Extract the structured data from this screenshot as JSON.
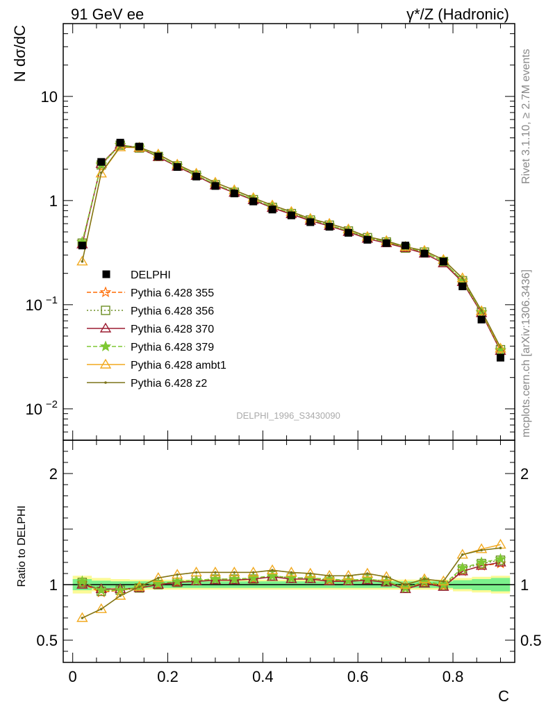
{
  "header": {
    "left": "91 GeV ee",
    "right": "γ*/Z (Hadronic)"
  },
  "side_labels": {
    "rivet": "Rivet 3.1.10, ≥ 2.7M events",
    "mcplots": "mcplots.cern.ch [arXiv:1306.3436]"
  },
  "watermark": "DELPHI_1996_S3430090",
  "colors": {
    "data": "#000000",
    "p355": "#ff6a00",
    "p356": "#6b8e23",
    "p370": "#9b1b30",
    "p379": "#7ec832",
    "ambt1": "#f2a91e",
    "z2": "#7b7318",
    "band_inner": "#7cf08c",
    "band_outer": "#fbfa96"
  },
  "chart_data": [
    {
      "type": "scatter",
      "ylabel": "N dσ/dC",
      "yscale": "log",
      "ylim": [
        0.005,
        50
      ],
      "xlim": [
        -0.02,
        0.93
      ],
      "yticks": [
        {
          "v": 10,
          "label": "10"
        },
        {
          "v": 1,
          "label": "1"
        },
        {
          "v": 0.1,
          "label": "10",
          "exp": "−1"
        },
        {
          "v": 0.01,
          "label": "10",
          "exp": "−2"
        }
      ],
      "x": [
        0.02,
        0.06,
        0.1,
        0.14,
        0.18,
        0.22,
        0.26,
        0.3,
        0.34,
        0.38,
        0.42,
        0.46,
        0.5,
        0.54,
        0.58,
        0.62,
        0.66,
        0.7,
        0.74,
        0.78,
        0.82,
        0.86,
        0.9
      ],
      "data": {
        "name": "DELPHI",
        "values": [
          0.37,
          2.35,
          3.6,
          3.3,
          2.65,
          2.1,
          1.7,
          1.38,
          1.17,
          0.98,
          0.82,
          0.72,
          0.62,
          0.56,
          0.49,
          0.42,
          0.39,
          0.37,
          0.31,
          0.26,
          0.15,
          0.072,
          0.031
        ]
      },
      "series": [
        {
          "name": "Pythia 6.428 355",
          "key": "p355",
          "marker": "star-open",
          "dash": "6,3",
          "values": [
            0.4,
            2.2,
            3.4,
            3.2,
            2.65,
            2.15,
            1.75,
            1.42,
            1.2,
            1.02,
            0.86,
            0.75,
            0.65,
            0.58,
            0.51,
            0.44,
            0.4,
            0.35,
            0.32,
            0.26,
            0.17,
            0.084,
            0.036
          ]
        },
        {
          "name": "Pythia 6.428 356",
          "key": "p356",
          "marker": "square-open",
          "dash": "2,3",
          "values": [
            0.39,
            2.2,
            3.4,
            3.2,
            2.65,
            2.15,
            1.75,
            1.42,
            1.2,
            1.02,
            0.86,
            0.75,
            0.65,
            0.58,
            0.51,
            0.44,
            0.4,
            0.35,
            0.32,
            0.26,
            0.17,
            0.085,
            0.037
          ]
        },
        {
          "name": "Pythia 6.428 370",
          "key": "p370",
          "marker": "triangle-open",
          "dash": "",
          "values": [
            0.38,
            2.25,
            3.45,
            3.2,
            2.62,
            2.12,
            1.73,
            1.4,
            1.19,
            1.01,
            0.85,
            0.74,
            0.64,
            0.57,
            0.5,
            0.43,
            0.39,
            0.35,
            0.31,
            0.25,
            0.165,
            0.083,
            0.036
          ]
        },
        {
          "name": "Pythia 6.428 379",
          "key": "p379",
          "marker": "star-filled",
          "dash": "6,3",
          "values": [
            0.4,
            2.22,
            3.42,
            3.22,
            2.66,
            2.16,
            1.76,
            1.43,
            1.21,
            1.03,
            0.87,
            0.76,
            0.66,
            0.58,
            0.51,
            0.44,
            0.4,
            0.36,
            0.32,
            0.26,
            0.17,
            0.085,
            0.037
          ]
        },
        {
          "name": "Pythia 6.428 ambt1",
          "key": "ambt1",
          "marker": "triangle-open",
          "dash": "",
          "values": [
            0.26,
            1.82,
            3.25,
            3.22,
            2.78,
            2.22,
            1.82,
            1.49,
            1.26,
            1.06,
            0.9,
            0.78,
            0.67,
            0.6,
            0.53,
            0.45,
            0.41,
            0.36,
            0.33,
            0.27,
            0.18,
            0.087,
            0.038
          ]
        },
        {
          "name": "Pythia 6.428 z2",
          "key": "z2",
          "marker": "dot",
          "dash": "",
          "values": [
            0.26,
            1.85,
            3.3,
            3.25,
            2.78,
            2.22,
            1.82,
            1.49,
            1.26,
            1.06,
            0.9,
            0.78,
            0.67,
            0.6,
            0.53,
            0.45,
            0.41,
            0.36,
            0.33,
            0.27,
            0.18,
            0.088,
            0.039
          ]
        }
      ]
    },
    {
      "type": "line",
      "ylabel": "Ratio to DELPHI",
      "xlabel": "C",
      "ylim": [
        0.3,
        2.3
      ],
      "xlim": [
        -0.02,
        0.93
      ],
      "yticks": [
        {
          "v": 2,
          "label": "2"
        },
        {
          "v": 1,
          "label": "1"
        },
        {
          "v": 0.5,
          "label": "0.5"
        }
      ],
      "xticks": [
        {
          "v": 0,
          "label": "0"
        },
        {
          "v": 0.2,
          "label": "0.2"
        },
        {
          "v": 0.4,
          "label": "0.4"
        },
        {
          "v": 0.6,
          "label": "0.6"
        },
        {
          "v": 0.8,
          "label": "0.8"
        }
      ],
      "x": [
        0.02,
        0.06,
        0.1,
        0.14,
        0.18,
        0.22,
        0.26,
        0.3,
        0.34,
        0.38,
        0.42,
        0.46,
        0.5,
        0.54,
        0.58,
        0.62,
        0.66,
        0.7,
        0.74,
        0.78,
        0.82,
        0.86,
        0.9
      ],
      "band_inner": [
        0.05,
        0.035,
        0.03,
        0.03,
        0.03,
        0.03,
        0.03,
        0.03,
        0.03,
        0.03,
        0.03,
        0.03,
        0.03,
        0.03,
        0.03,
        0.03,
        0.03,
        0.03,
        0.03,
        0.03,
        0.04,
        0.05,
        0.06
      ],
      "band_outer": [
        0.08,
        0.06,
        0.05,
        0.045,
        0.045,
        0.045,
        0.045,
        0.045,
        0.045,
        0.045,
        0.045,
        0.045,
        0.045,
        0.045,
        0.045,
        0.045,
        0.045,
        0.045,
        0.045,
        0.045,
        0.06,
        0.07,
        0.08
      ],
      "series": [
        {
          "key": "p355",
          "marker": "star-open",
          "dash": "6,3",
          "values": [
            1.01,
            0.93,
            0.95,
            0.97,
            1.0,
            1.02,
            1.04,
            1.05,
            1.05,
            1.05,
            1.08,
            1.06,
            1.06,
            1.04,
            1.04,
            1.05,
            1.03,
            0.97,
            1.02,
            0.99,
            1.12,
            1.17,
            1.19
          ]
        },
        {
          "key": "p356",
          "marker": "square-open",
          "dash": "2,3",
          "values": [
            1.02,
            0.94,
            0.95,
            0.97,
            1.0,
            1.02,
            1.04,
            1.05,
            1.05,
            1.05,
            1.08,
            1.06,
            1.06,
            1.04,
            1.04,
            1.05,
            1.03,
            0.97,
            1.02,
            0.99,
            1.14,
            1.19,
            1.22
          ]
        },
        {
          "key": "p370",
          "marker": "triangle-open",
          "dash": "",
          "values": [
            1.0,
            0.96,
            0.96,
            0.97,
            1.0,
            1.02,
            1.03,
            1.04,
            1.04,
            1.05,
            1.07,
            1.05,
            1.05,
            1.03,
            1.03,
            1.04,
            1.02,
            0.96,
            1.01,
            0.98,
            1.12,
            1.17,
            1.2
          ]
        },
        {
          "key": "p379",
          "marker": "star-filled",
          "dash": "6,3",
          "values": [
            1.03,
            0.95,
            0.95,
            0.98,
            1.01,
            1.03,
            1.04,
            1.05,
            1.05,
            1.06,
            1.08,
            1.06,
            1.06,
            1.05,
            1.04,
            1.05,
            1.03,
            0.97,
            1.03,
            1.0,
            1.15,
            1.2,
            1.23
          ]
        },
        {
          "key": "ambt1",
          "marker": "triangle-open",
          "dash": "",
          "values": [
            0.7,
            0.78,
            0.9,
            0.98,
            1.06,
            1.09,
            1.11,
            1.11,
            1.11,
            1.11,
            1.13,
            1.11,
            1.1,
            1.08,
            1.08,
            1.1,
            1.07,
            1.0,
            1.05,
            1.03,
            1.27,
            1.32,
            1.36
          ]
        },
        {
          "key": "z2",
          "marker": "dot",
          "dash": "",
          "values": [
            0.7,
            0.78,
            0.9,
            0.98,
            1.06,
            1.09,
            1.11,
            1.11,
            1.11,
            1.11,
            1.13,
            1.11,
            1.1,
            1.08,
            1.08,
            1.1,
            1.07,
            1.0,
            1.05,
            1.03,
            1.27,
            1.31,
            1.33
          ]
        }
      ]
    }
  ]
}
